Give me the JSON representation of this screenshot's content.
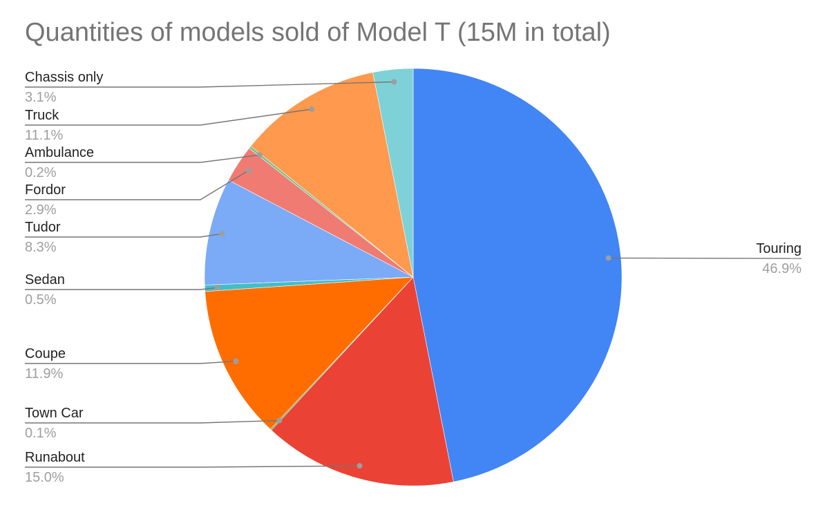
{
  "chart_data": {
    "type": "pie",
    "title": "Quantities of models sold of Model T (15M in total)",
    "slices": [
      {
        "name": "Touring",
        "percent": 46.9,
        "label": "46.9%",
        "color": "#4285f4"
      },
      {
        "name": "Runabout",
        "percent": 15.0,
        "label": "15.0%",
        "color": "#ea4335"
      },
      {
        "name": "Town Car",
        "percent": 0.1,
        "label": "0.1%",
        "color": "#34a853"
      },
      {
        "name": "Coupe",
        "percent": 11.9,
        "label": "11.9%",
        "color": "#ff6d01"
      },
      {
        "name": "Sedan",
        "percent": 0.5,
        "label": "0.5%",
        "color": "#46bdc6"
      },
      {
        "name": "Tudor",
        "percent": 8.3,
        "label": "8.3%",
        "color": "#7baaf7"
      },
      {
        "name": "Fordor",
        "percent": 2.9,
        "label": "2.9%",
        "color": "#f07b72"
      },
      {
        "name": "Ambulance",
        "percent": 0.2,
        "label": "0.2%",
        "color": "#71c287"
      },
      {
        "name": "Truck",
        "percent": 11.1,
        "label": "11.1%",
        "color": "#ff994d"
      },
      {
        "name": "Chassis only",
        "percent": 3.1,
        "label": "3.1%",
        "color": "#7ed1d7"
      }
    ],
    "legend": "callout labels"
  }
}
